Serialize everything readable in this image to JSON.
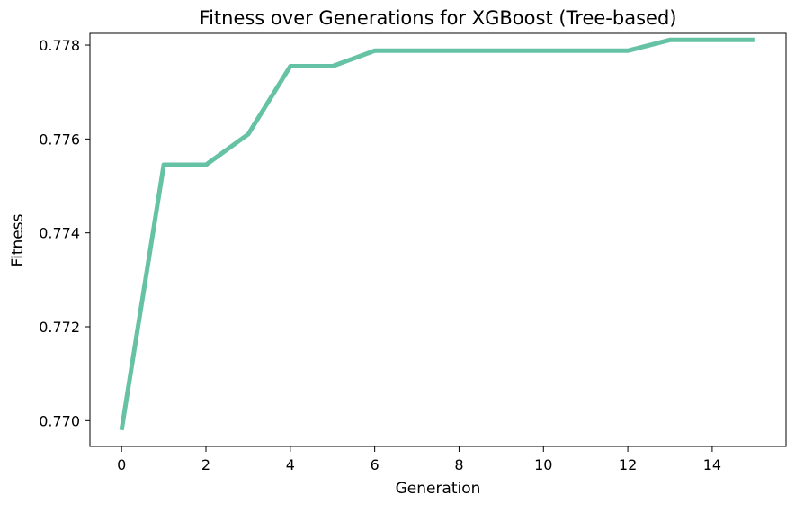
{
  "chart_data": {
    "type": "line",
    "title": "Fitness over Generations for XGBoost (Tree-based)",
    "xlabel": "Generation",
    "ylabel": "Fitness",
    "xlim": [
      -0.75,
      15.75
    ],
    "ylim": [
      0.76945,
      0.77825
    ],
    "xticks": [
      0,
      2,
      4,
      6,
      8,
      10,
      12,
      14
    ],
    "xtick_labels": [
      "0",
      "2",
      "4",
      "6",
      "8",
      "10",
      "12",
      "14"
    ],
    "yticks": [
      0.77,
      0.772,
      0.774,
      0.776,
      0.778
    ],
    "ytick_labels": [
      "0.770",
      "0.772",
      "0.774",
      "0.776",
      "0.778"
    ],
    "grid": false,
    "legend": false,
    "series": [
      {
        "color": "#66c2a5",
        "x": [
          0,
          1,
          2,
          3,
          4,
          5,
          6,
          7,
          8,
          9,
          10,
          11,
          12,
          13,
          14,
          15
        ],
        "y": [
          0.7698,
          0.77545,
          0.77545,
          0.7761,
          0.77755,
          0.77755,
          0.77788,
          0.77788,
          0.77788,
          0.77788,
          0.77788,
          0.77788,
          0.77788,
          0.77811,
          0.77811,
          0.77811
        ]
      }
    ]
  }
}
